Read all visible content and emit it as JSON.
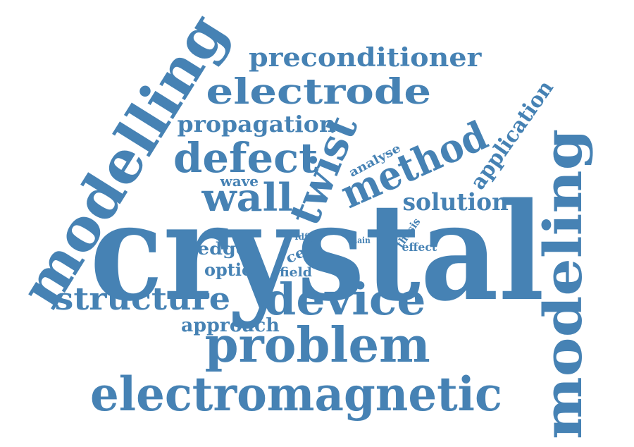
{
  "color": "#4682b4",
  "words": {
    "crystal": "crystal",
    "modelling": "modelling",
    "modeling": "modeling",
    "electromagnetic": "electromagnetic",
    "problem": "problem",
    "device": "device",
    "structure": "structure",
    "electrode": "electrode",
    "preconditioner": "preconditioner",
    "propagation": "propagation",
    "defect": "defect",
    "twist": "twist",
    "method": "method",
    "wall": "wall",
    "solution": "solution",
    "application": "application",
    "analyse": "analyse",
    "wave": "wave",
    "edge": "edge",
    "optic": "optic",
    "cell": "cell",
    "field": "field",
    "fdfd": "fdfd",
    "main": "main",
    "thesis": "thesis",
    "effect": "effect",
    "approach": "approach"
  }
}
